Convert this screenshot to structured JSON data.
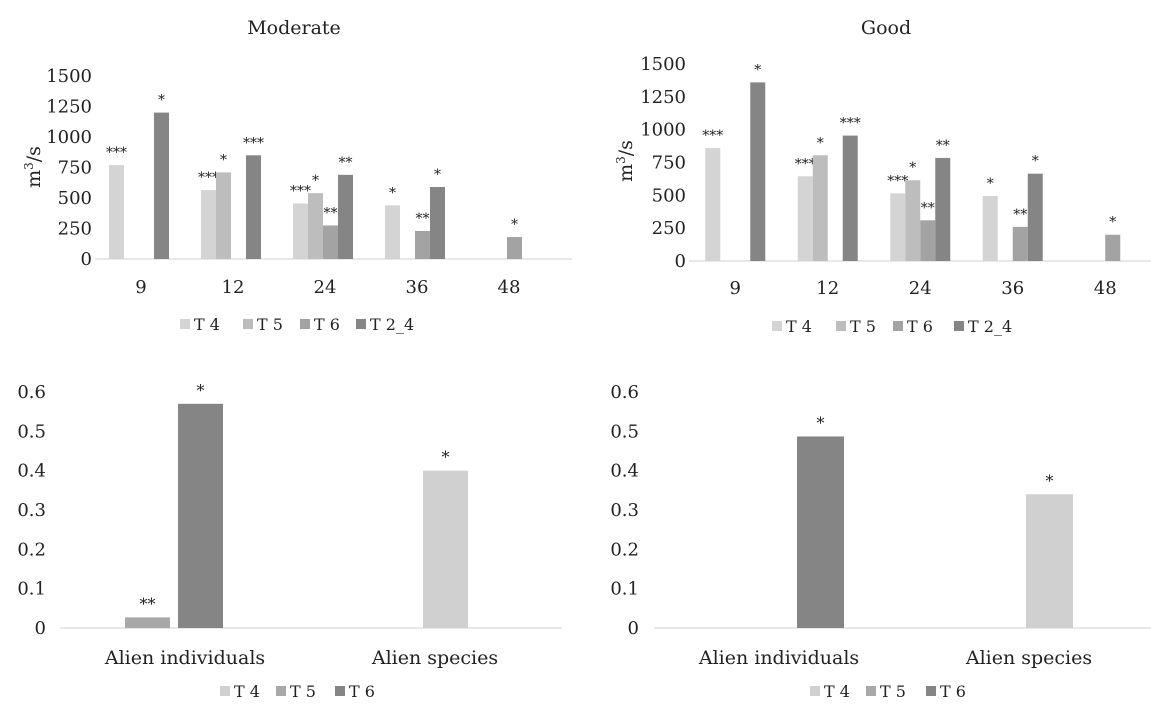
{
  "chart_data": [
    {
      "type": "bar",
      "title": "Moderate",
      "ylabel": "m3/s",
      "ylabel_base": "m",
      "ylabel_sup": "3",
      "ylabel_rest": "/s",
      "ylim": [
        0,
        1500
      ],
      "yticks": [
        0,
        250,
        500,
        750,
        1000,
        1250,
        1500
      ],
      "categories": [
        "9",
        "12",
        "24",
        "36",
        "48"
      ],
      "legend_position": "bottom",
      "series": [
        {
          "name": "T 4",
          "color": "#d4d4d4",
          "values": [
            770,
            565,
            455,
            440,
            null
          ],
          "labels": [
            "***",
            "***",
            "***",
            "*",
            ""
          ]
        },
        {
          "name": "T 5",
          "color": "#bdbdbd",
          "values": [
            null,
            710,
            540,
            null,
            null
          ],
          "labels": [
            "",
            "*",
            "*",
            "",
            ""
          ]
        },
        {
          "name": "T 6",
          "color": "#a3a3a3",
          "values": [
            null,
            null,
            275,
            230,
            180
          ],
          "labels": [
            "",
            "",
            "**",
            "**",
            "*"
          ]
        },
        {
          "name": "T 2_4",
          "color": "#858585",
          "values": [
            1200,
            850,
            690,
            590,
            null
          ],
          "labels": [
            "*",
            "***",
            "**",
            "*",
            ""
          ]
        }
      ]
    },
    {
      "type": "bar",
      "title": "Good",
      "ylabel": "m3/s",
      "ylabel_base": "m",
      "ylabel_sup": "3",
      "ylabel_rest": "/s",
      "ylim": [
        0,
        1500
      ],
      "yticks": [
        0,
        250,
        500,
        750,
        1000,
        1250,
        1500
      ],
      "categories": [
        "9",
        "12",
        "24",
        "36",
        "48"
      ],
      "legend_position": "bottom",
      "series": [
        {
          "name": "T 4",
          "color": "#d4d4d4",
          "values": [
            860,
            645,
            515,
            495,
            null
          ],
          "labels": [
            "***",
            "***",
            "***",
            "*",
            ""
          ]
        },
        {
          "name": "T 5",
          "color": "#bdbdbd",
          "values": [
            null,
            805,
            615,
            null,
            null
          ],
          "labels": [
            "",
            "*",
            "*",
            "",
            ""
          ]
        },
        {
          "name": "T 6",
          "color": "#a3a3a3",
          "values": [
            null,
            null,
            310,
            260,
            200
          ],
          "labels": [
            "",
            "",
            "**",
            "**",
            "*"
          ]
        },
        {
          "name": "T 2_4",
          "color": "#858585",
          "values": [
            1360,
            955,
            785,
            665,
            null
          ],
          "labels": [
            "*",
            "***",
            "**",
            "*",
            ""
          ]
        }
      ]
    },
    {
      "type": "bar",
      "title": "",
      "ylim": [
        0,
        0.6
      ],
      "yticks": [
        0,
        0.1,
        0.2,
        0.3,
        0.4,
        0.5,
        0.6
      ],
      "categories": [
        "Alien individuals",
        "Alien species"
      ],
      "legend_position": "bottom",
      "series": [
        {
          "name": "T 4",
          "color": "#d0d0d0",
          "values": [
            null,
            0.4
          ],
          "labels": [
            "",
            "*"
          ]
        },
        {
          "name": "T 5",
          "color": "#a8a8a8",
          "values": [
            0.027,
            null
          ],
          "labels": [
            "**",
            ""
          ]
        },
        {
          "name": "T 6",
          "color": "#858585",
          "values": [
            0.57,
            null
          ],
          "labels": [
            "*",
            ""
          ]
        }
      ]
    },
    {
      "type": "bar",
      "title": "",
      "ylim": [
        0,
        0.6
      ],
      "yticks": [
        0,
        0.1,
        0.2,
        0.3,
        0.4,
        0.5,
        0.6
      ],
      "categories": [
        "Alien individuals",
        "Alien species"
      ],
      "legend_position": "bottom",
      "series": [
        {
          "name": "T 4",
          "color": "#d0d0d0",
          "values": [
            null,
            0.34
          ],
          "labels": [
            "",
            "*"
          ]
        },
        {
          "name": "T 5",
          "color": "#a8a8a8",
          "values": [
            null,
            null
          ],
          "labels": [
            "",
            ""
          ]
        },
        {
          "name": "T 6",
          "color": "#858585",
          "values": [
            0.487,
            null
          ],
          "labels": [
            "*",
            ""
          ]
        }
      ]
    }
  ]
}
